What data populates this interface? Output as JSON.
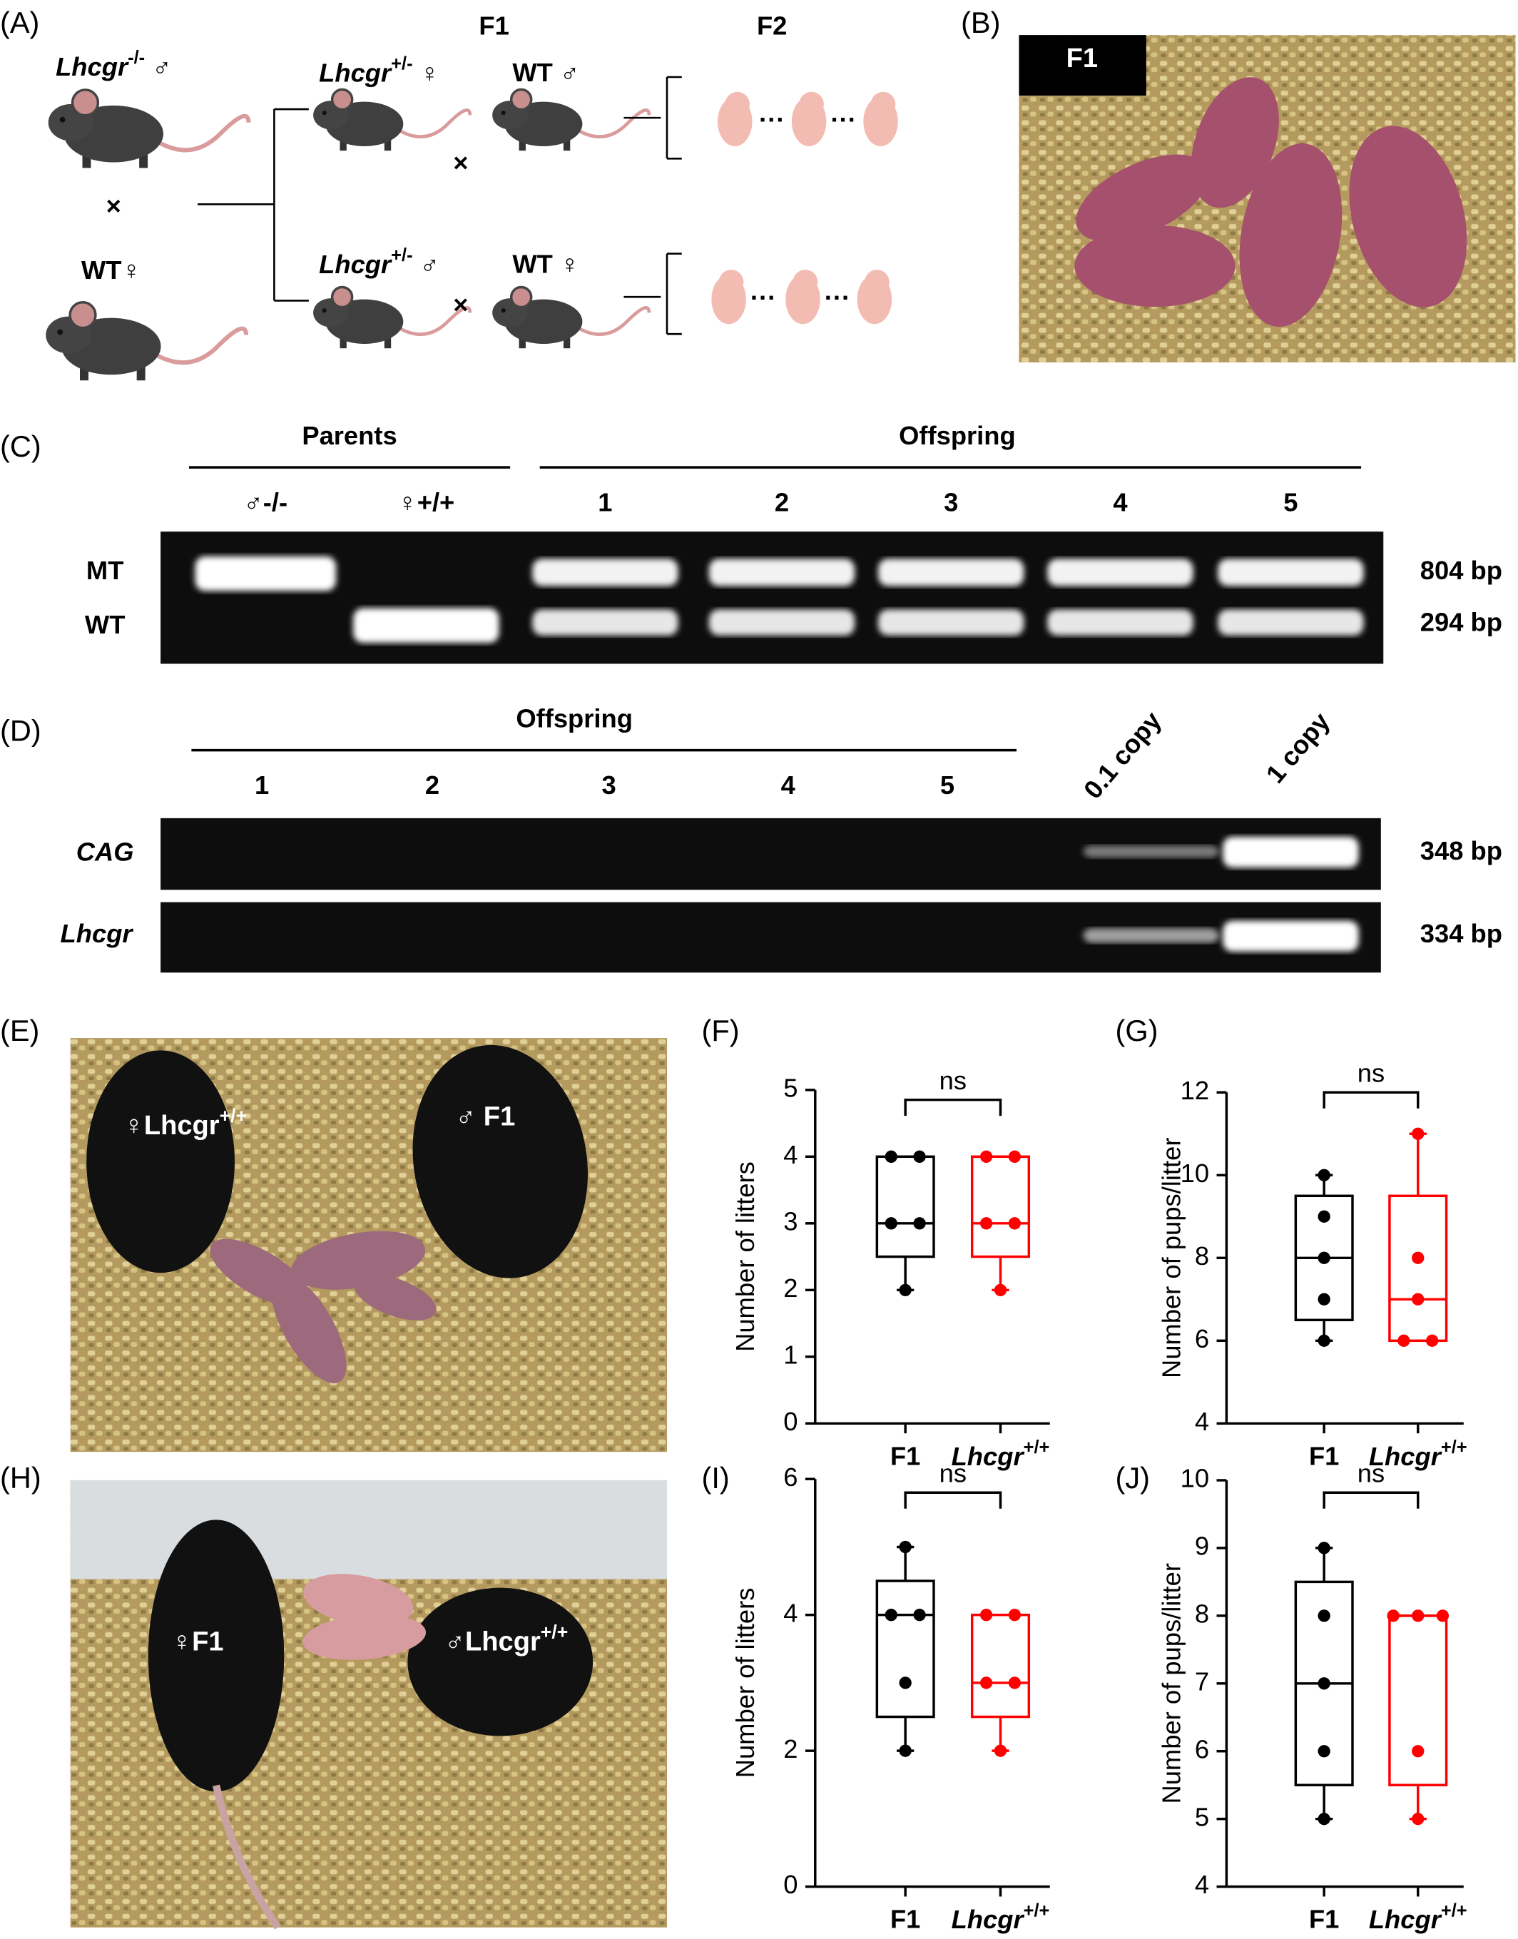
{
  "panel_labels": [
    "(A)",
    "(B)",
    "(C)",
    "(D)",
    "(E)",
    "(F)",
    "(G)",
    "(H)",
    "(I)",
    "(J)"
  ],
  "diagram": {
    "f1": "F1",
    "f2": "F2",
    "parent_male": "Lhcgr-/- ♂",
    "parent_female": "WT♀",
    "cross": "×",
    "top_female": "Lhcgr+/- ♀",
    "top_male": "WT ♂",
    "bottom_male": "Lhcgr+/- ♂",
    "bottom_female": "WT ♀",
    "ellipsis": "···"
  },
  "photo_b": {
    "label": "F1"
  },
  "gel_c": {
    "group_left": "Parents",
    "group_right": "Offspring",
    "lanes": [
      "♂-/-",
      "♀+/+",
      "1",
      "2",
      "3",
      "4",
      "5"
    ],
    "rows": [
      "MT",
      "WT"
    ],
    "sizes": [
      "804 bp",
      "294 bp"
    ]
  },
  "gel_d": {
    "group": "Offspring",
    "lanes": [
      "1",
      "2",
      "3",
      "4",
      "5",
      "0.1 copy",
      "1 copy"
    ],
    "rows": [
      "CAG",
      "Lhcgr"
    ],
    "sizes": [
      "348 bp",
      "334 bp"
    ]
  },
  "photo_e": {
    "labels": [
      "♀Lhcgr+/+",
      "♂ F1"
    ]
  },
  "photo_h": {
    "labels": [
      "♀F1",
      "♂Lhcgr+/+"
    ]
  },
  "chart_data": [
    {
      "type": "box",
      "ylabel": "Number of litters",
      "categories": [
        "F1",
        "Lhcgr+/+"
      ],
      "annotation": "ns",
      "ylim": [
        0,
        5
      ],
      "yticks": [
        0,
        1,
        2,
        3,
        4,
        5
      ],
      "series": [
        {
          "color": "#000000",
          "values": [
            4,
            4,
            3,
            3,
            2
          ],
          "box": {
            "min": 2,
            "q1": 2.5,
            "median": 3,
            "q3": 4,
            "max": 4
          }
        },
        {
          "color": "#ff0000",
          "values": [
            4,
            4,
            3,
            3,
            2
          ],
          "box": {
            "min": 2,
            "q1": 2.5,
            "median": 3,
            "q3": 4,
            "max": 4
          }
        }
      ]
    },
    {
      "type": "box",
      "ylabel": "Number of pups/litter",
      "categories": [
        "F1",
        "Lhcgr+/+"
      ],
      "annotation": "ns",
      "ylim": [
        4,
        12
      ],
      "yticks": [
        4,
        6,
        8,
        10,
        12
      ],
      "series": [
        {
          "color": "#000000",
          "values": [
            10,
            9,
            8,
            7,
            6
          ],
          "box": {
            "min": 6,
            "q1": 6.5,
            "median": 8,
            "q3": 9.5,
            "max": 10
          }
        },
        {
          "color": "#ff0000",
          "values": [
            11,
            8,
            7,
            6,
            6
          ],
          "box": {
            "min": 6,
            "q1": 6,
            "median": 7,
            "q3": 9.5,
            "max": 11
          }
        }
      ]
    },
    {
      "type": "box",
      "ylabel": "Number of litters",
      "categories": [
        "F1",
        "Lhcgr+/+"
      ],
      "annotation": "ns",
      "ylim": [
        0,
        6
      ],
      "yticks": [
        0,
        2,
        4,
        6
      ],
      "series": [
        {
          "color": "#000000",
          "values": [
            5,
            4,
            4,
            3,
            2
          ],
          "box": {
            "min": 2,
            "q1": 2.5,
            "median": 4,
            "q3": 4.5,
            "max": 5
          }
        },
        {
          "color": "#ff0000",
          "values": [
            4,
            4,
            3,
            3,
            2
          ],
          "box": {
            "min": 2,
            "q1": 2.5,
            "median": 3,
            "q3": 4,
            "max": 4
          }
        }
      ]
    },
    {
      "type": "box",
      "ylabel": "Number of pups/litter",
      "categories": [
        "F1",
        "Lhcgr+/+"
      ],
      "annotation": "ns",
      "ylim": [
        4,
        10
      ],
      "yticks": [
        4,
        5,
        6,
        7,
        8,
        9,
        10
      ],
      "series": [
        {
          "color": "#000000",
          "values": [
            9,
            8,
            7,
            6,
            5
          ],
          "box": {
            "min": 5,
            "q1": 5.5,
            "median": 7,
            "q3": 8.5,
            "max": 9
          }
        },
        {
          "color": "#ff0000",
          "values": [
            8,
            8,
            8,
            6,
            5
          ],
          "box": {
            "min": 5,
            "q1": 5.5,
            "median": 8,
            "q3": 8,
            "max": 8
          }
        }
      ]
    }
  ]
}
